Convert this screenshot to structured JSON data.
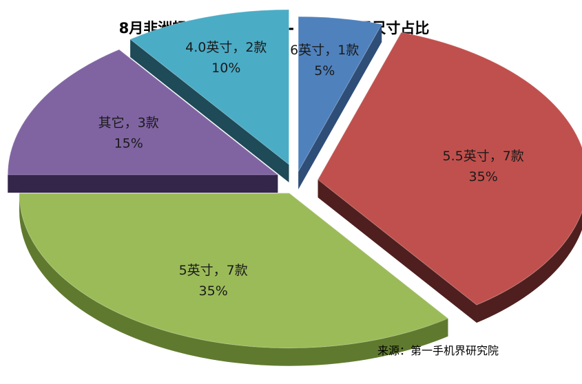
{
  "chart_data": {
    "type": "pie",
    "title": "8月非洲畅销手机TOP 20- 触控显示屏尺寸占比",
    "slices": [
      {
        "label": "6英寸，1款",
        "percent_label": "5%",
        "value": 1,
        "percent": 5,
        "color": "#4F81BD",
        "side_color": "#2E4E78"
      },
      {
        "label": "5.5英寸，7款",
        "percent_label": "35%",
        "value": 7,
        "percent": 35,
        "color": "#C0504D",
        "side_color": "#4E1F1E"
      },
      {
        "label": "5英寸，7款",
        "percent_label": "35%",
        "value": 7,
        "percent": 35,
        "color": "#9BBB59",
        "side_color": "#5F7A2E"
      },
      {
        "label": "其它，3款",
        "percent_label": "15%",
        "value": 3,
        "percent": 15,
        "color": "#8064A2",
        "side_color": "#33264A"
      },
      {
        "label": "4.0英寸，2款",
        "percent_label": "10%",
        "value": 2,
        "percent": 10,
        "color": "#4BACC6",
        "side_color": "#1F4A57"
      }
    ],
    "exploded": true,
    "three_d": true,
    "legend": "none"
  },
  "source": "来源：第一手机界研究院"
}
